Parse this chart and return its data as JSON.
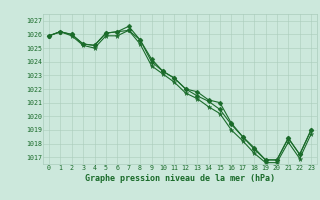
{
  "title": "Graphe pression niveau de la mer (hPa)",
  "background_color": "#cce8dc",
  "grid_color": "#aaccbb",
  "line_color": "#1a6b2a",
  "xlim": [
    -0.5,
    23.5
  ],
  "ylim": [
    1016.5,
    1027.5
  ],
  "yticks": [
    1017,
    1018,
    1019,
    1020,
    1021,
    1022,
    1023,
    1024,
    1025,
    1026,
    1027
  ],
  "xticks": [
    0,
    1,
    2,
    3,
    4,
    5,
    6,
    7,
    8,
    9,
    10,
    11,
    12,
    13,
    14,
    15,
    16,
    17,
    18,
    19,
    20,
    21,
    22,
    23
  ],
  "series1": [
    1025.9,
    1026.2,
    1026.0,
    1025.3,
    1025.2,
    1026.1,
    1026.2,
    1026.6,
    1025.6,
    1024.2,
    1023.3,
    1022.8,
    1022.0,
    1021.8,
    1021.2,
    1021.0,
    1019.5,
    1018.5,
    1017.7,
    1016.8,
    1016.8,
    1018.4,
    1017.2,
    1019.0
  ],
  "series2": [
    1025.9,
    1026.2,
    1026.0,
    1025.3,
    1025.2,
    1026.1,
    1026.2,
    1026.3,
    1025.6,
    1024.0,
    1023.3,
    1022.8,
    1022.0,
    1021.5,
    1021.1,
    1020.5,
    1019.4,
    1018.5,
    1017.6,
    1016.8,
    1016.8,
    1018.4,
    1017.2,
    1019.0
  ],
  "series3": [
    1025.9,
    1026.2,
    1025.9,
    1025.2,
    1025.0,
    1025.9,
    1025.9,
    1026.3,
    1025.3,
    1023.7,
    1023.1,
    1022.5,
    1021.7,
    1021.3,
    1020.7,
    1020.2,
    1019.0,
    1018.2,
    1017.3,
    1016.6,
    1016.6,
    1018.1,
    1016.9,
    1018.7
  ],
  "marker_size": 2.5,
  "line_width": 0.8,
  "tick_fontsize": 4.8,
  "title_fontsize": 6.0
}
